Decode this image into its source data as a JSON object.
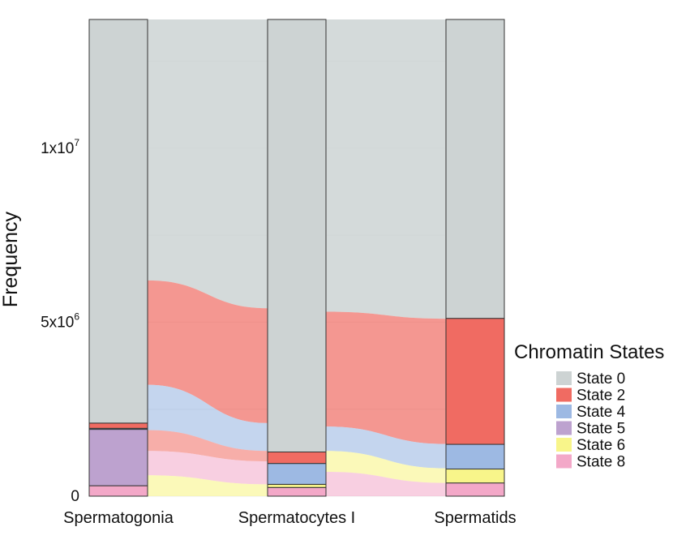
{
  "chart_data": {
    "type": "alluvial",
    "ylabel": "Frequency",
    "xlabel": "",
    "ylim": [
      0,
      13700000
    ],
    "grid": true,
    "y_ticks": [
      {
        "value": 0,
        "mantissa": "0",
        "exponent": ""
      },
      {
        "value": 5000000,
        "mantissa": "5x10",
        "exponent": "6"
      },
      {
        "value": 10000000,
        "mantissa": "1x10",
        "exponent": "7"
      }
    ],
    "categories": [
      "Spermatogonia",
      "Spermatocytes I",
      "Spermatids"
    ],
    "legend": {
      "title": "Chromatin States",
      "position": "right",
      "entries": [
        "State 0",
        "State 2",
        "State 4",
        "State 5",
        "State 6",
        "State 8"
      ]
    },
    "state_colors": {
      "State 0": "#cdd3d3",
      "State 2": "#f06b62",
      "State 4": "#9db9e3",
      "State 5": "#bda2cf",
      "State 6": "#f8f58a",
      "State 8": "#f3a8c8"
    },
    "stacks": [
      {
        "category": "Spermatogonia",
        "values": {
          "State 8": 300000,
          "State 5": 1620000,
          "State 4": 30000,
          "State 2": 150000,
          "State 0": 11600000
        }
      },
      {
        "category": "Spermatocytes I",
        "values": {
          "State 8": 250000,
          "State 6": 90000,
          "State 4": 600000,
          "State 2": 330000,
          "State 0": 12430000
        }
      },
      {
        "category": "Spermatids",
        "values": {
          "State 8": 380000,
          "State 6": 400000,
          "State 4": 710000,
          "State 2": 3620000,
          "State 0": 8590000
        }
      }
    ],
    "flows": [
      {
        "from": "Spermatogonia",
        "to": "Spermatocytes I",
        "from_state": "State 0",
        "to_state": "State 0",
        "value": 7300000
      },
      {
        "from": "Spermatogonia",
        "to": "Spermatocytes I",
        "from_state": "State 2",
        "to_state": "State 0",
        "value": 3000000
      },
      {
        "from": "Spermatogonia",
        "to": "Spermatocytes I",
        "from_state": "State 0",
        "to_state": "State 0",
        "value": 1300000
      },
      {
        "from": "Spermatogonia",
        "to": "Spermatocytes I",
        "from_state": "State 4",
        "to_state": "State 2",
        "value": 600000
      },
      {
        "from": "Spermatogonia",
        "to": "Spermatocytes I",
        "from_state": "State 8",
        "to_state": "State 4",
        "value": 500000
      },
      {
        "from": "Spermatocytes I",
        "to": "Spermatids",
        "from_state": "State 0",
        "to_state": "State 0",
        "value": 8300000
      },
      {
        "from": "Spermatocytes I",
        "to": "Spermatids",
        "from_state": "State 0",
        "to_state": "State 2",
        "value": 3300000
      },
      {
        "from": "Spermatocytes I",
        "to": "Spermatids",
        "from_state": "State 4",
        "to_state": "State 4",
        "value": 700000
      },
      {
        "from": "Spermatocytes I",
        "to": "Spermatids",
        "from_state": "State 6",
        "to_state": "State 6",
        "value": 400000
      },
      {
        "from": "Spermatocytes I",
        "to": "Spermatids",
        "from_state": "State 8",
        "to_state": "State 8",
        "value": 300000
      }
    ]
  }
}
